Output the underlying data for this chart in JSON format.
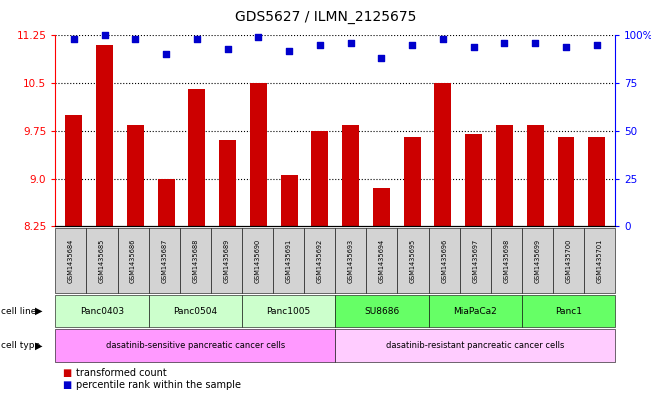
{
  "title": "GDS5627 / ILMN_2125675",
  "samples": [
    "GSM1435684",
    "GSM1435685",
    "GSM1435686",
    "GSM1435687",
    "GSM1435688",
    "GSM1435689",
    "GSM1435690",
    "GSM1435691",
    "GSM1435692",
    "GSM1435693",
    "GSM1435694",
    "GSM1435695",
    "GSM1435696",
    "GSM1435697",
    "GSM1435698",
    "GSM1435699",
    "GSM1435700",
    "GSM1435701"
  ],
  "bar_values": [
    10.0,
    11.1,
    9.85,
    9.0,
    10.4,
    9.6,
    10.5,
    9.05,
    9.75,
    9.85,
    8.85,
    9.65,
    10.5,
    9.7,
    9.85,
    9.85,
    9.65,
    9.65
  ],
  "percentile_values": [
    98,
    100,
    98,
    90,
    98,
    93,
    99,
    92,
    95,
    96,
    88,
    95,
    98,
    94,
    96,
    96,
    94,
    95
  ],
  "ylim_left": [
    8.25,
    11.25
  ],
  "ylim_right": [
    0,
    100
  ],
  "yticks_left": [
    8.25,
    9.0,
    9.75,
    10.5,
    11.25
  ],
  "yticks_right": [
    0,
    25,
    50,
    75,
    100
  ],
  "bar_color": "#cc0000",
  "dot_color": "#0000cc",
  "gridline_color": "#000000",
  "cell_lines": [
    {
      "name": "Panc0403",
      "start": 0,
      "end": 2,
      "color": "#ccffcc"
    },
    {
      "name": "Panc0504",
      "start": 3,
      "end": 5,
      "color": "#ccffcc"
    },
    {
      "name": "Panc1005",
      "start": 6,
      "end": 8,
      "color": "#ccffcc"
    },
    {
      "name": "SU8686",
      "start": 9,
      "end": 11,
      "color": "#66ff66"
    },
    {
      "name": "MiaPaCa2",
      "start": 12,
      "end": 14,
      "color": "#66ff66"
    },
    {
      "name": "Panc1",
      "start": 15,
      "end": 17,
      "color": "#66ff66"
    }
  ],
  "cell_types": [
    {
      "name": "dasatinib-sensitive pancreatic cancer cells",
      "start": 0,
      "end": 8,
      "color": "#ff99ff"
    },
    {
      "name": "dasatinib-resistant pancreatic cancer cells",
      "start": 9,
      "end": 17,
      "color": "#ffccff"
    }
  ],
  "legend_bar_label": "transformed count",
  "legend_dot_label": "percentile rank within the sample",
  "cell_line_label": "cell line",
  "cell_type_label": "cell type",
  "background_color": "#ffffff",
  "plot_bg_color": "#ffffff"
}
